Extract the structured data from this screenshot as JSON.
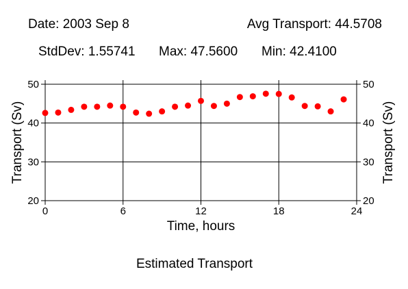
{
  "header": {
    "date": "Date: 2003 Sep 8",
    "avg": "Avg Transport: 44.5708",
    "stddev": "StdDev: 1.55741",
    "max": "Max: 47.5600",
    "min": "Min: 42.4100"
  },
  "caption": "Estimated Transport",
  "chart_data": {
    "type": "scatter",
    "xlabel": "Time, hours",
    "ylabel": "Transport (Sv)",
    "xlim": [
      0,
      24
    ],
    "ylim": [
      20,
      50
    ],
    "x_ticks": [
      0,
      6,
      12,
      18,
      24
    ],
    "y_ticks": [
      20,
      30,
      40,
      50
    ],
    "grid": true,
    "marker_color": "#ff0000",
    "x": [
      0,
      1,
      2,
      3,
      4,
      5,
      6,
      7,
      8,
      9,
      10,
      11,
      12,
      13,
      14,
      15,
      16,
      17,
      18,
      19,
      20,
      21,
      22,
      23
    ],
    "y": [
      42.6,
      42.7,
      43.4,
      44.2,
      44.2,
      44.5,
      44.2,
      42.7,
      42.41,
      43.0,
      44.2,
      44.5,
      45.7,
      44.4,
      45.0,
      46.7,
      46.9,
      47.56,
      47.5,
      46.6,
      44.4,
      44.3,
      43.0,
      46.1
    ]
  }
}
